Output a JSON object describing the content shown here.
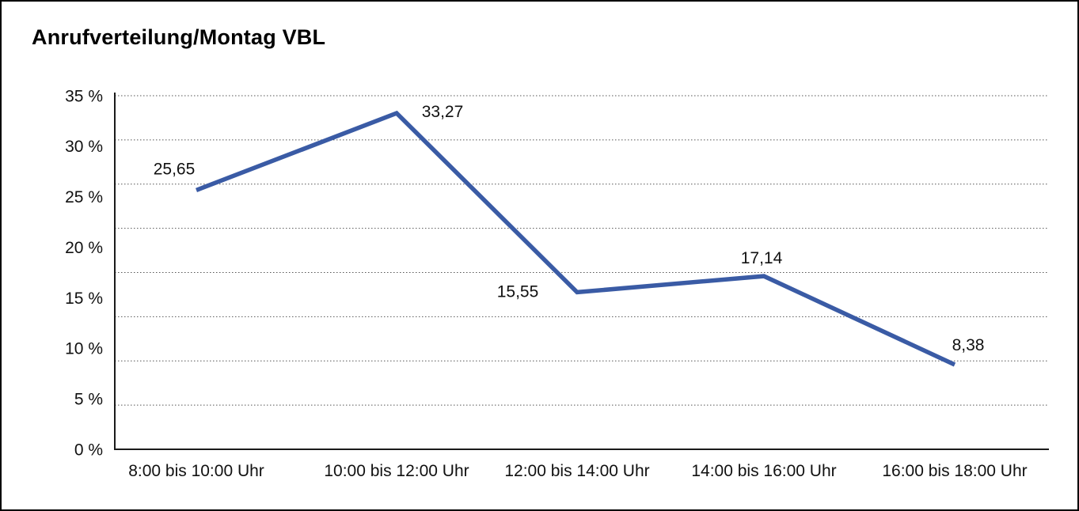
{
  "title": "Anrufverteilung/Montag VBL",
  "chart_data": {
    "type": "line",
    "title": "Anrufverteilung/Montag VBL",
    "categories": [
      "8:00 bis 10:00 Uhr",
      "10:00 bis 12:00 Uhr",
      "12:00 bis 14:00 Uhr",
      "14:00 bis 16:00 Uhr",
      "16:00 bis 18:00 Uhr"
    ],
    "values": [
      25.65,
      33.27,
      15.55,
      17.14,
      8.38
    ],
    "value_labels": [
      "25,65",
      "33,27",
      "15,55",
      "17,14",
      "8,38"
    ],
    "y_tick_labels": [
      "35 %",
      "30 %",
      "25 %",
      "20 %",
      "15 %",
      "10 %",
      "5 %",
      "0 %"
    ],
    "y_tick_values": [
      35,
      30,
      25,
      20,
      15,
      10,
      5,
      0
    ],
    "ylim": [
      0,
      35
    ],
    "y_unit": "%",
    "xlabel": "",
    "ylabel": "",
    "legend": "none",
    "grid": {
      "visible": true,
      "style": "dotted",
      "horizontal_dotted_line_count": 8
    },
    "line_color": "#3A5BA5",
    "gridline_color": "#555555",
    "axis_color": "#1a1a1a",
    "text_color": "#111111"
  }
}
